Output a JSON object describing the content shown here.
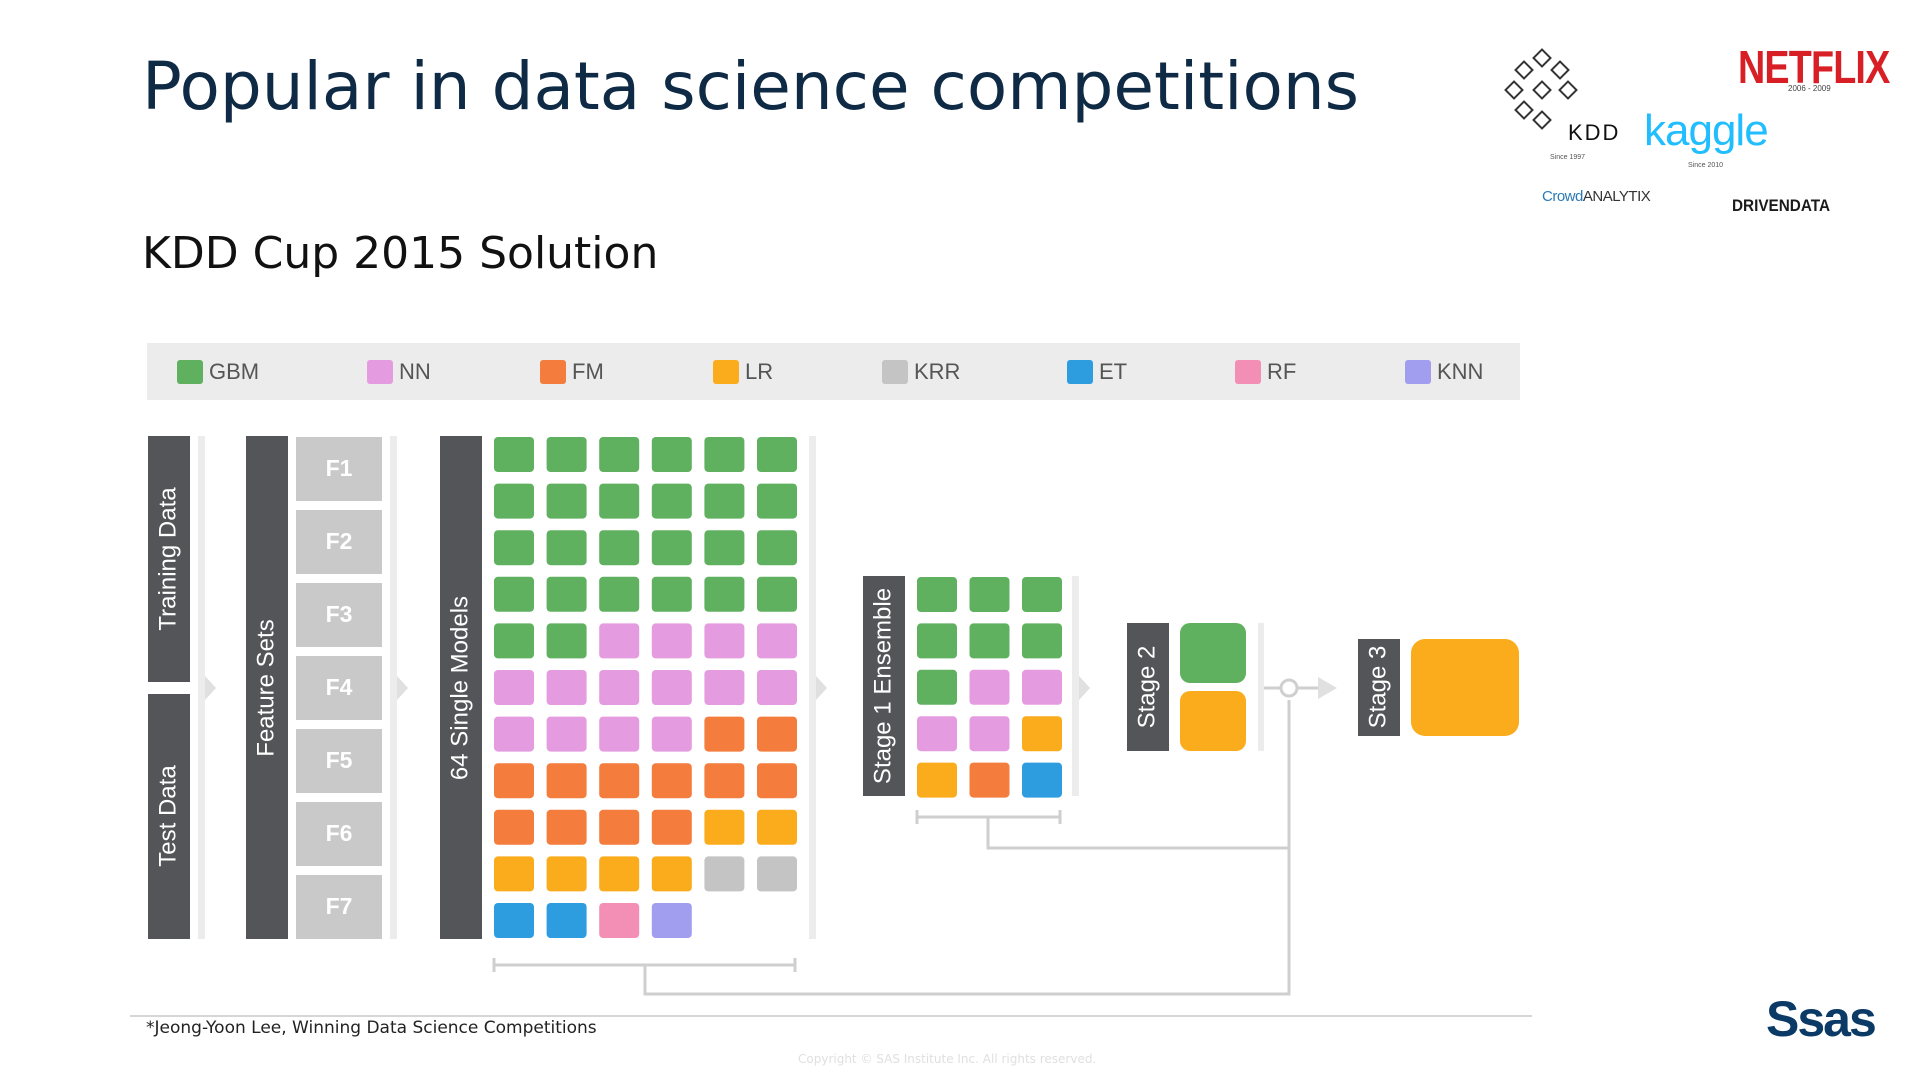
{
  "slide": {
    "title": "Popular in data science competitions",
    "subtitle": "KDD Cup 2015 Solution",
    "footnote": "*Jeong-Yoon Lee, Winning Data Science Competitions",
    "copyright": "Copyright © SAS Institute Inc. All rights reserved."
  },
  "logos": {
    "kdd": "KDD",
    "kdd_since": "Since 1997",
    "netflix": "NETFLIX",
    "netflix_years": "2006 - 2009",
    "kaggle": "kaggle",
    "kaggle_since": "Since 2010",
    "crowd_a": "Crowd",
    "crowd_b": "ANALYTIX",
    "drivendata": "DRIVENDATA",
    "sas": "Ssas"
  },
  "colors": {
    "GBM": "#5fb160",
    "NN": "#e59be0",
    "FM": "#f47c3c",
    "LR": "#fbac1c",
    "KRR": "#c4c4c4",
    "ET": "#2e9de0",
    "RF": "#f38fb5",
    "KNN": "#a19ef0",
    "dark_panel": "#535559",
    "feature_box": "#c9c9c9",
    "connector": "#cfcfcf"
  },
  "legend": [
    {
      "key": "GBM",
      "label": "GBM"
    },
    {
      "key": "NN",
      "label": "NN"
    },
    {
      "key": "FM",
      "label": "FM"
    },
    {
      "key": "LR",
      "label": "LR"
    },
    {
      "key": "KRR",
      "label": "KRR"
    },
    {
      "key": "ET",
      "label": "ET"
    },
    {
      "key": "RF",
      "label": "RF"
    },
    {
      "key": "KNN",
      "label": "KNN"
    }
  ],
  "diagram": {
    "data_labels": [
      "Training Data",
      "Test Data"
    ],
    "feature_sets_label": "Feature Sets",
    "feature_sets": [
      "F1",
      "F2",
      "F3",
      "F4",
      "F5",
      "F6",
      "F7"
    ],
    "single_models_label": "64 Single Models",
    "single_models": [
      "GBM",
      "GBM",
      "GBM",
      "GBM",
      "GBM",
      "GBM",
      "GBM",
      "GBM",
      "GBM",
      "GBM",
      "GBM",
      "GBM",
      "GBM",
      "GBM",
      "GBM",
      "GBM",
      "GBM",
      "GBM",
      "GBM",
      "GBM",
      "GBM",
      "GBM",
      "GBM",
      "GBM",
      "GBM",
      "GBM",
      "NN",
      "NN",
      "NN",
      "NN",
      "NN",
      "NN",
      "NN",
      "NN",
      "NN",
      "NN",
      "NN",
      "NN",
      "NN",
      "NN",
      "FM",
      "FM",
      "FM",
      "FM",
      "FM",
      "FM",
      "FM",
      "FM",
      "FM",
      "FM",
      "FM",
      "FM",
      "LR",
      "LR",
      "LR",
      "LR",
      "LR",
      "LR",
      "KRR",
      "KRR",
      "ET",
      "ET",
      "RF",
      "KNN"
    ],
    "stage1_label": "Stage 1 Ensemble",
    "stage1_models": [
      "GBM",
      "GBM",
      "GBM",
      "GBM",
      "GBM",
      "GBM",
      "GBM",
      "NN",
      "NN",
      "NN",
      "NN",
      "LR",
      "LR",
      "FM",
      "ET"
    ],
    "stage2_label": "Stage 2",
    "stage2_models": [
      "GBM",
      "LR"
    ],
    "stage3_label": "Stage 3",
    "stage3_models": [
      "LR"
    ]
  }
}
